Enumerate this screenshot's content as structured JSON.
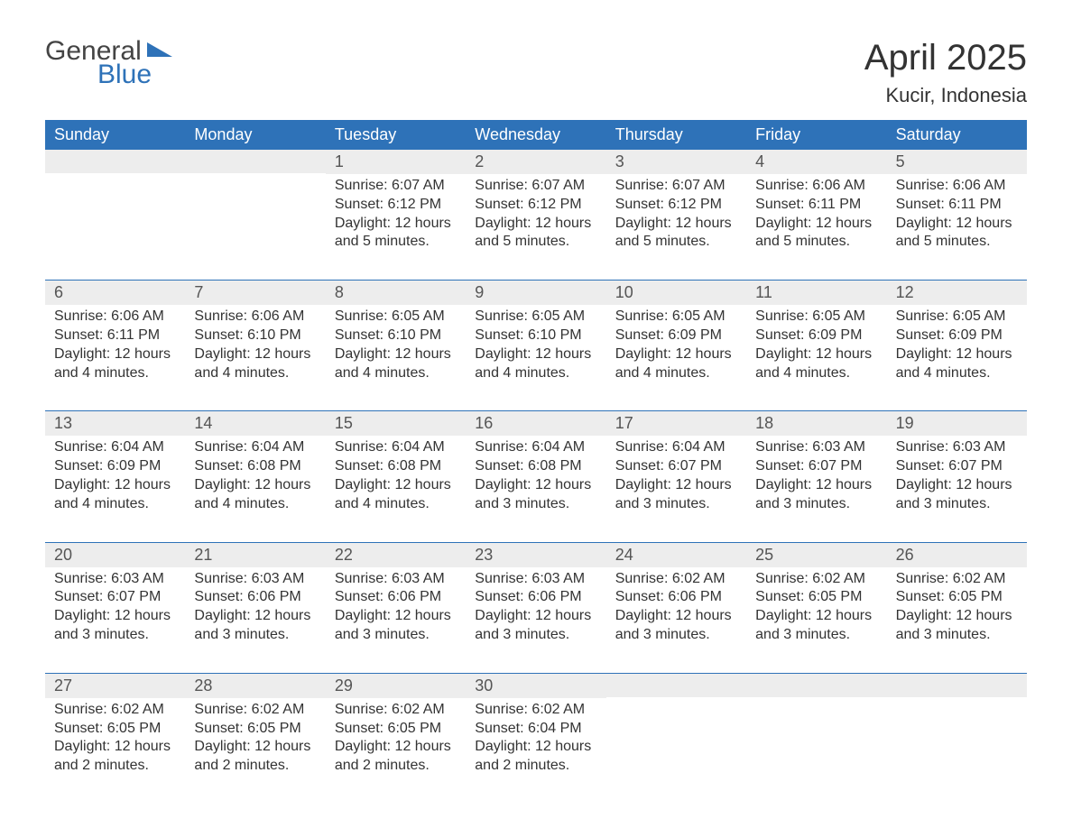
{
  "logo": {
    "line1": "General",
    "line2": "Blue"
  },
  "title": "April 2025",
  "subtitle": "Kucir, Indonesia",
  "colors": {
    "header_bg": "#2e72b8",
    "header_text": "#ffffff",
    "band_bg": "#ededed",
    "text": "#333333",
    "accent": "#2e72b8"
  },
  "day_headers": [
    "Sunday",
    "Monday",
    "Tuesday",
    "Wednesday",
    "Thursday",
    "Friday",
    "Saturday"
  ],
  "weeks": [
    [
      {
        "day": "",
        "lines": []
      },
      {
        "day": "",
        "lines": []
      },
      {
        "day": "1",
        "lines": [
          "Sunrise: 6:07 AM",
          "Sunset: 6:12 PM",
          "Daylight: 12 hours and 5 minutes."
        ]
      },
      {
        "day": "2",
        "lines": [
          "Sunrise: 6:07 AM",
          "Sunset: 6:12 PM",
          "Daylight: 12 hours and 5 minutes."
        ]
      },
      {
        "day": "3",
        "lines": [
          "Sunrise: 6:07 AM",
          "Sunset: 6:12 PM",
          "Daylight: 12 hours and 5 minutes."
        ]
      },
      {
        "day": "4",
        "lines": [
          "Sunrise: 6:06 AM",
          "Sunset: 6:11 PM",
          "Daylight: 12 hours and 5 minutes."
        ]
      },
      {
        "day": "5",
        "lines": [
          "Sunrise: 6:06 AM",
          "Sunset: 6:11 PM",
          "Daylight: 12 hours and 5 minutes."
        ]
      }
    ],
    [
      {
        "day": "6",
        "lines": [
          "Sunrise: 6:06 AM",
          "Sunset: 6:11 PM",
          "Daylight: 12 hours and 4 minutes."
        ]
      },
      {
        "day": "7",
        "lines": [
          "Sunrise: 6:06 AM",
          "Sunset: 6:10 PM",
          "Daylight: 12 hours and 4 minutes."
        ]
      },
      {
        "day": "8",
        "lines": [
          "Sunrise: 6:05 AM",
          "Sunset: 6:10 PM",
          "Daylight: 12 hours and 4 minutes."
        ]
      },
      {
        "day": "9",
        "lines": [
          "Sunrise: 6:05 AM",
          "Sunset: 6:10 PM",
          "Daylight: 12 hours and 4 minutes."
        ]
      },
      {
        "day": "10",
        "lines": [
          "Sunrise: 6:05 AM",
          "Sunset: 6:09 PM",
          "Daylight: 12 hours and 4 minutes."
        ]
      },
      {
        "day": "11",
        "lines": [
          "Sunrise: 6:05 AM",
          "Sunset: 6:09 PM",
          "Daylight: 12 hours and 4 minutes."
        ]
      },
      {
        "day": "12",
        "lines": [
          "Sunrise: 6:05 AM",
          "Sunset: 6:09 PM",
          "Daylight: 12 hours and 4 minutes."
        ]
      }
    ],
    [
      {
        "day": "13",
        "lines": [
          "Sunrise: 6:04 AM",
          "Sunset: 6:09 PM",
          "Daylight: 12 hours and 4 minutes."
        ]
      },
      {
        "day": "14",
        "lines": [
          "Sunrise: 6:04 AM",
          "Sunset: 6:08 PM",
          "Daylight: 12 hours and 4 minutes."
        ]
      },
      {
        "day": "15",
        "lines": [
          "Sunrise: 6:04 AM",
          "Sunset: 6:08 PM",
          "Daylight: 12 hours and 4 minutes."
        ]
      },
      {
        "day": "16",
        "lines": [
          "Sunrise: 6:04 AM",
          "Sunset: 6:08 PM",
          "Daylight: 12 hours and 3 minutes."
        ]
      },
      {
        "day": "17",
        "lines": [
          "Sunrise: 6:04 AM",
          "Sunset: 6:07 PM",
          "Daylight: 12 hours and 3 minutes."
        ]
      },
      {
        "day": "18",
        "lines": [
          "Sunrise: 6:03 AM",
          "Sunset: 6:07 PM",
          "Daylight: 12 hours and 3 minutes."
        ]
      },
      {
        "day": "19",
        "lines": [
          "Sunrise: 6:03 AM",
          "Sunset: 6:07 PM",
          "Daylight: 12 hours and 3 minutes."
        ]
      }
    ],
    [
      {
        "day": "20",
        "lines": [
          "Sunrise: 6:03 AM",
          "Sunset: 6:07 PM",
          "Daylight: 12 hours and 3 minutes."
        ]
      },
      {
        "day": "21",
        "lines": [
          "Sunrise: 6:03 AM",
          "Sunset: 6:06 PM",
          "Daylight: 12 hours and 3 minutes."
        ]
      },
      {
        "day": "22",
        "lines": [
          "Sunrise: 6:03 AM",
          "Sunset: 6:06 PM",
          "Daylight: 12 hours and 3 minutes."
        ]
      },
      {
        "day": "23",
        "lines": [
          "Sunrise: 6:03 AM",
          "Sunset: 6:06 PM",
          "Daylight: 12 hours and 3 minutes."
        ]
      },
      {
        "day": "24",
        "lines": [
          "Sunrise: 6:02 AM",
          "Sunset: 6:06 PM",
          "Daylight: 12 hours and 3 minutes."
        ]
      },
      {
        "day": "25",
        "lines": [
          "Sunrise: 6:02 AM",
          "Sunset: 6:05 PM",
          "Daylight: 12 hours and 3 minutes."
        ]
      },
      {
        "day": "26",
        "lines": [
          "Sunrise: 6:02 AM",
          "Sunset: 6:05 PM",
          "Daylight: 12 hours and 3 minutes."
        ]
      }
    ],
    [
      {
        "day": "27",
        "lines": [
          "Sunrise: 6:02 AM",
          "Sunset: 6:05 PM",
          "Daylight: 12 hours and 2 minutes."
        ]
      },
      {
        "day": "28",
        "lines": [
          "Sunrise: 6:02 AM",
          "Sunset: 6:05 PM",
          "Daylight: 12 hours and 2 minutes."
        ]
      },
      {
        "day": "29",
        "lines": [
          "Sunrise: 6:02 AM",
          "Sunset: 6:05 PM",
          "Daylight: 12 hours and 2 minutes."
        ]
      },
      {
        "day": "30",
        "lines": [
          "Sunrise: 6:02 AM",
          "Sunset: 6:04 PM",
          "Daylight: 12 hours and 2 minutes."
        ]
      },
      {
        "day": "",
        "lines": []
      },
      {
        "day": "",
        "lines": []
      },
      {
        "day": "",
        "lines": []
      }
    ]
  ]
}
